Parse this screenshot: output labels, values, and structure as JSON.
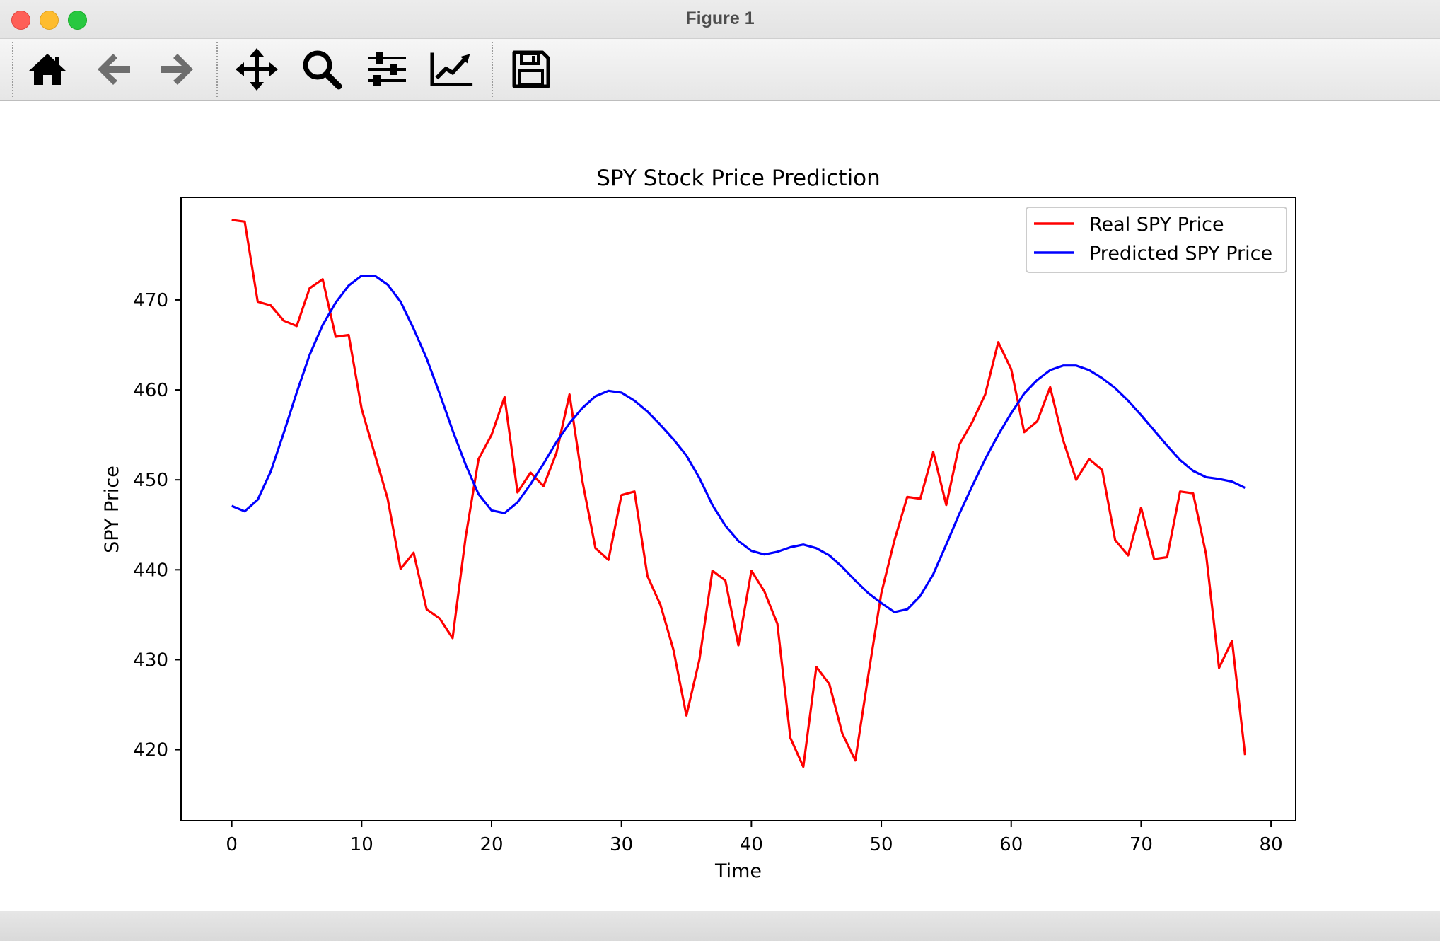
{
  "window": {
    "title": "Figure 1"
  },
  "toolbar": {
    "items": [
      {
        "name": "home-icon",
        "label": "Home"
      },
      {
        "name": "back-arrow-icon",
        "label": "Back"
      },
      {
        "name": "forward-arrow-icon",
        "label": "Forward"
      },
      {
        "name": "pan-icon",
        "label": "Pan"
      },
      {
        "name": "zoom-icon",
        "label": "Zoom"
      },
      {
        "name": "configure-subplots-icon",
        "label": "Subplots"
      },
      {
        "name": "edit-axes-icon",
        "label": "Customize"
      },
      {
        "name": "save-icon",
        "label": "Save"
      }
    ]
  },
  "colors": {
    "real": "#ff0000",
    "predicted": "#0000ff"
  },
  "chart_data": {
    "type": "line",
    "title": "SPY Stock Price Prediction",
    "xlabel": "Time",
    "ylabel": "SPY Price",
    "xlim": [
      -3.9,
      81.9
    ],
    "ylim": [
      412.1,
      481.4
    ],
    "xticks": [
      0,
      10,
      20,
      30,
      40,
      50,
      60,
      70,
      80
    ],
    "yticks": [
      420,
      430,
      440,
      450,
      460,
      470
    ],
    "grid": false,
    "legend_position": "top-right",
    "series": [
      {
        "name": "Real SPY Price",
        "color": "#ff0000",
        "x": [
          0,
          1,
          2,
          3,
          4,
          5,
          6,
          7,
          8,
          9,
          10,
          11,
          12,
          13,
          14,
          15,
          16,
          17,
          18,
          19,
          20,
          21,
          22,
          23,
          24,
          25,
          26,
          27,
          28,
          29,
          30,
          31,
          32,
          33,
          34,
          35,
          36,
          37,
          38,
          39,
          40,
          41,
          42,
          43,
          44,
          45,
          46,
          47,
          48,
          49,
          50,
          51,
          52,
          53,
          54,
          55,
          56,
          57,
          58,
          59,
          60,
          61,
          62,
          63,
          64,
          65,
          66,
          67,
          68,
          69,
          70,
          71,
          72,
          73,
          74,
          75,
          76,
          77,
          78
        ],
        "values": [
          478.9,
          478.7,
          469.8,
          469.4,
          467.7,
          467.1,
          471.3,
          472.3,
          465.9,
          466.1,
          457.9,
          452.9,
          447.9,
          440.1,
          441.9,
          435.6,
          434.6,
          432.4,
          443.6,
          452.3,
          455.0,
          459.2,
          448.6,
          450.8,
          449.3,
          453.0,
          459.5,
          449.8,
          442.4,
          441.1,
          448.3,
          448.7,
          439.3,
          436.1,
          431.1,
          423.8,
          430.0,
          439.9,
          438.8,
          431.6,
          439.9,
          437.6,
          434.0,
          421.3,
          418.1,
          429.2,
          427.3,
          421.8,
          418.8,
          428.3,
          437.4,
          443.2,
          448.1,
          447.9,
          453.1,
          447.2,
          453.9,
          456.4,
          459.5,
          465.3,
          462.3,
          455.3,
          456.5,
          460.3,
          454.4,
          450.0,
          452.3,
          451.1,
          443.3,
          441.6,
          446.9,
          441.2,
          441.4,
          448.7,
          448.5,
          441.7,
          429.1,
          432.1,
          419.4
        ]
      },
      {
        "name": "Predicted SPY Price",
        "color": "#0000ff",
        "x": [
          0,
          1,
          2,
          3,
          4,
          5,
          6,
          7,
          8,
          9,
          10,
          11,
          12,
          13,
          14,
          15,
          16,
          17,
          18,
          19,
          20,
          21,
          22,
          23,
          24,
          25,
          26,
          27,
          28,
          29,
          30,
          31,
          32,
          33,
          34,
          35,
          36,
          37,
          38,
          39,
          40,
          41,
          42,
          43,
          44,
          45,
          46,
          47,
          48,
          49,
          50,
          51,
          52,
          53,
          54,
          55,
          56,
          57,
          58,
          59,
          60,
          61,
          62,
          63,
          64,
          65,
          66,
          67,
          68,
          69,
          70,
          71,
          72,
          73,
          74,
          75,
          76,
          77,
          78
        ],
        "values": [
          447.1,
          446.5,
          447.8,
          450.9,
          455.2,
          459.7,
          463.9,
          467.2,
          469.7,
          471.6,
          472.7,
          472.7,
          471.7,
          469.8,
          466.8,
          463.5,
          459.6,
          455.5,
          451.7,
          448.4,
          446.6,
          446.3,
          447.5,
          449.5,
          451.8,
          454.2,
          456.3,
          458.0,
          459.3,
          459.9,
          459.7,
          458.8,
          457.6,
          456.1,
          454.5,
          452.7,
          450.2,
          447.2,
          444.9,
          443.2,
          442.1,
          441.7,
          442.0,
          442.5,
          442.8,
          442.4,
          441.6,
          440.3,
          438.8,
          437.4,
          436.3,
          435.3,
          435.6,
          437.1,
          439.5,
          442.8,
          446.2,
          449.3,
          452.3,
          455.0,
          457.4,
          459.6,
          461.1,
          462.2,
          462.7,
          462.7,
          462.2,
          461.3,
          460.2,
          458.8,
          457.2,
          455.5,
          453.8,
          452.2,
          451.0,
          450.3,
          450.1,
          449.8,
          449.1
        ]
      }
    ]
  }
}
